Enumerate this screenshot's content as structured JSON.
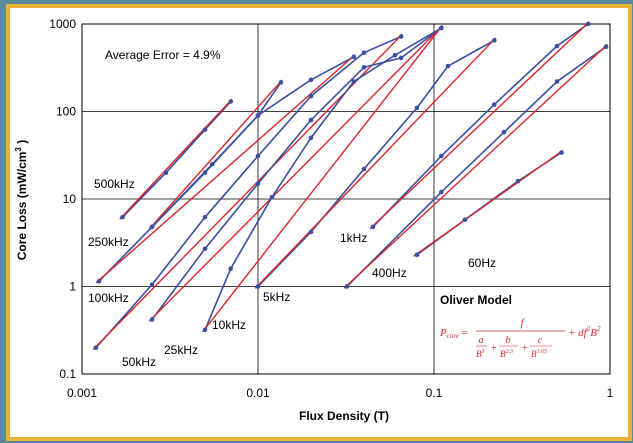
{
  "chart_data": {
    "type": "line",
    "xlabel": "Flux Density (T)",
    "ylabel": "Core Loss (mW/cm",
    "ylabel_sup": "3",
    "ylabel_tail": " )",
    "xscale": "log",
    "yscale": "log",
    "xlim": [
      0.001,
      1
    ],
    "ylim": [
      0.1,
      1000
    ],
    "x_ticks": [
      "0.001",
      "0.01",
      "0.1",
      "1"
    ],
    "y_ticks": [
      "0.1",
      "1",
      "10",
      "100",
      "1000"
    ],
    "grid": true,
    "annotation": "Average Error = 4.9%",
    "model_title": "Oliver Model",
    "formula": {
      "lhs": "P",
      "lhs_sub": "core",
      "numerator": "f",
      "term_a": "a",
      "term_a_den": "B",
      "term_a_exp": "3",
      "term_b": "b",
      "term_b_den": "B",
      "term_b_exp": "2.3",
      "term_c": "c",
      "term_c_den": "B",
      "term_c_exp": "1.65",
      "tail": "+ df",
      "tail_exp1": "2",
      "tail_b": "B",
      "tail_exp2": "2"
    },
    "colors": {
      "measured": "#3a4fa0",
      "model": "#d9262e",
      "frame": "#5a8a9a",
      "border": "#e8b23a"
    },
    "series": [
      {
        "name": "500kHz",
        "x": [
          0.0017,
          0.003,
          0.005,
          0.007
        ],
        "y": [
          6.2,
          20,
          62,
          130
        ]
      },
      {
        "name": "250kHz",
        "x": [
          0.0025,
          0.0055,
          0.01,
          0.0135
        ],
        "y": [
          4.8,
          25,
          90,
          215
        ]
      },
      {
        "name": "100kHz",
        "x": [
          0.00125,
          0.0025,
          0.005,
          0.01,
          0.02,
          0.035
        ],
        "y": [
          1.15,
          4.8,
          20,
          90,
          230,
          420
        ]
      },
      {
        "name": "50kHz",
        "x": [
          0.0012,
          0.0025,
          0.005,
          0.01,
          0.02,
          0.04,
          0.065
        ],
        "y": [
          0.2,
          1.05,
          6.2,
          31,
          150,
          470,
          720
        ]
      },
      {
        "name": "25kHz",
        "x": [
          0.0025,
          0.005,
          0.01,
          0.02,
          0.04,
          0.065,
          0.11
        ],
        "y": [
          0.42,
          2.7,
          15,
          80,
          320,
          410,
          900
        ]
      },
      {
        "name": "10kHz",
        "x": [
          0.005,
          0.007,
          0.012,
          0.02,
          0.035,
          0.06,
          0.11
        ],
        "y": [
          0.32,
          1.6,
          10.5,
          50,
          220,
          440,
          900
        ]
      },
      {
        "name": "5kHz",
        "x": [
          0.01,
          0.02,
          0.04,
          0.08,
          0.12,
          0.22
        ],
        "y": [
          1.0,
          4.2,
          22,
          110,
          330,
          650
        ]
      },
      {
        "name": "1kHz",
        "x": [
          0.045,
          0.11,
          0.22,
          0.5,
          0.75
        ],
        "y": [
          4.8,
          31,
          120,
          560,
          1000
        ]
      },
      {
        "name": "400Hz",
        "x": [
          0.032,
          0.11,
          0.25,
          0.5,
          0.95
        ],
        "y": [
          1.0,
          12,
          58,
          220,
          550
        ]
      },
      {
        "name": "60Hz",
        "x": [
          0.08,
          0.15,
          0.3,
          0.53
        ],
        "y": [
          2.3,
          5.8,
          16,
          34
        ]
      }
    ]
  }
}
